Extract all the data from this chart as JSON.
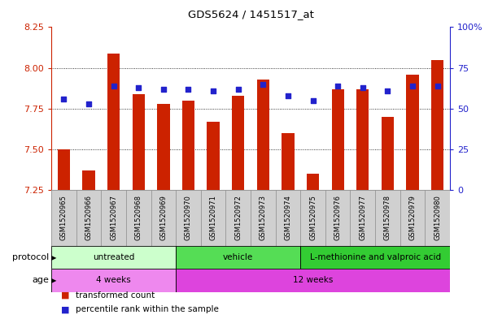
{
  "title": "GDS5624 / 1451517_at",
  "samples": [
    "GSM1520965",
    "GSM1520966",
    "GSM1520967",
    "GSM1520968",
    "GSM1520969",
    "GSM1520970",
    "GSM1520971",
    "GSM1520972",
    "GSM1520973",
    "GSM1520974",
    "GSM1520975",
    "GSM1520976",
    "GSM1520977",
    "GSM1520978",
    "GSM1520979",
    "GSM1520980"
  ],
  "transformed_count": [
    7.5,
    7.37,
    8.09,
    7.84,
    7.78,
    7.8,
    7.67,
    7.83,
    7.93,
    7.6,
    7.35,
    7.87,
    7.87,
    7.7,
    7.96,
    8.05
  ],
  "percentile_rank": [
    56,
    53,
    64,
    63,
    62,
    62,
    61,
    62,
    65,
    58,
    55,
    64,
    63,
    61,
    64,
    64
  ],
  "ylim_left": [
    7.25,
    8.25
  ],
  "ylim_right": [
    0,
    100
  ],
  "yticks_left": [
    7.25,
    7.5,
    7.75,
    8.0,
    8.25
  ],
  "yticks_right": [
    0,
    25,
    50,
    75,
    100
  ],
  "ytick_labels_right": [
    "0",
    "25",
    "50",
    "75",
    "100%"
  ],
  "bar_color": "#cc2200",
  "dot_color": "#2222cc",
  "bar_bottom": 7.25,
  "protocol_groups": [
    {
      "label": "untreated",
      "start": 0,
      "end": 4,
      "color": "#ccffcc"
    },
    {
      "label": "vehicle",
      "start": 5,
      "end": 9,
      "color": "#55dd55"
    },
    {
      "label": "L-methionine and valproic acid",
      "start": 10,
      "end": 15,
      "color": "#33cc33"
    }
  ],
  "age_groups": [
    {
      "label": "4 weeks",
      "start": 0,
      "end": 4,
      "color": "#ee88ee"
    },
    {
      "label": "12 weeks",
      "start": 5,
      "end": 15,
      "color": "#dd44dd"
    }
  ],
  "protocol_label": "protocol",
  "age_label": "age",
  "legend_red": "transformed count",
  "legend_blue": "percentile rank within the sample",
  "tick_color_left": "#cc2200",
  "tick_color_right": "#2222cc",
  "bar_width": 0.5,
  "xtick_bg_color": "#d0d0d0",
  "spine_color": "#999999"
}
